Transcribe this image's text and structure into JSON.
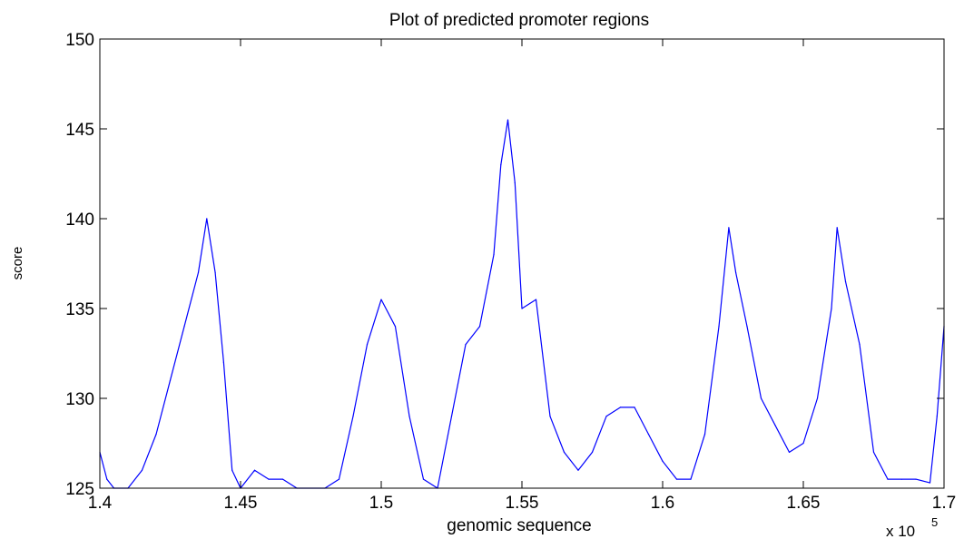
{
  "chart_data": {
    "type": "line",
    "title": "Plot of predicted promoter regions",
    "xlabel": "genomic sequence",
    "ylabel": "score",
    "x_multiplier_prefix": "x 10",
    "x_multiplier_exponent": "5",
    "xlim": [
      1.4,
      1.7
    ],
    "ylim": [
      125,
      150
    ],
    "xticks": [
      1.4,
      1.45,
      1.5,
      1.55,
      1.6,
      1.65,
      1.7
    ],
    "xtick_labels": [
      "1.4",
      "1.45",
      "1.5",
      "1.55",
      "1.6",
      "1.65",
      "1.7"
    ],
    "yticks": [
      125,
      130,
      135,
      140,
      145,
      150
    ],
    "ytick_labels": [
      "125",
      "130",
      "135",
      "140",
      "145",
      "150"
    ],
    "grid": false,
    "series": [
      {
        "color": "#0000ff",
        "x": [
          1.4,
          1.4025,
          1.405,
          1.41,
          1.415,
          1.42,
          1.425,
          1.43,
          1.435,
          1.438,
          1.441,
          1.444,
          1.447,
          1.45,
          1.455,
          1.46,
          1.465,
          1.47,
          1.48,
          1.485,
          1.49,
          1.495,
          1.5,
          1.505,
          1.51,
          1.515,
          1.52,
          1.525,
          1.53,
          1.535,
          1.54,
          1.5425,
          1.545,
          1.5475,
          1.55,
          1.555,
          1.56,
          1.565,
          1.57,
          1.575,
          1.58,
          1.585,
          1.59,
          1.595,
          1.6,
          1.605,
          1.61,
          1.615,
          1.62,
          1.6235,
          1.626,
          1.63,
          1.635,
          1.64,
          1.645,
          1.65,
          1.655,
          1.66,
          1.662,
          1.665,
          1.67,
          1.675,
          1.68,
          1.685,
          1.69,
          1.695,
          1.6975,
          1.7
        ],
        "y": [
          127,
          125.5,
          125,
          125,
          126,
          128,
          131,
          134,
          137,
          140,
          137,
          132,
          126,
          125,
          126,
          125.5,
          125.5,
          125,
          125,
          125.5,
          129,
          133,
          135.5,
          134,
          129,
          125.5,
          125,
          129,
          133,
          134,
          138,
          143,
          145.5,
          142,
          135,
          135.5,
          129,
          127,
          126,
          127,
          129,
          129.5,
          129.5,
          128,
          126.5,
          125.5,
          125.5,
          128,
          134,
          139.5,
          137,
          134,
          130,
          128.5,
          127,
          127.5,
          130,
          135,
          139.5,
          136.5,
          133,
          127,
          125.5,
          125.5,
          125.5,
          125.3,
          129,
          134
        ]
      }
    ]
  }
}
